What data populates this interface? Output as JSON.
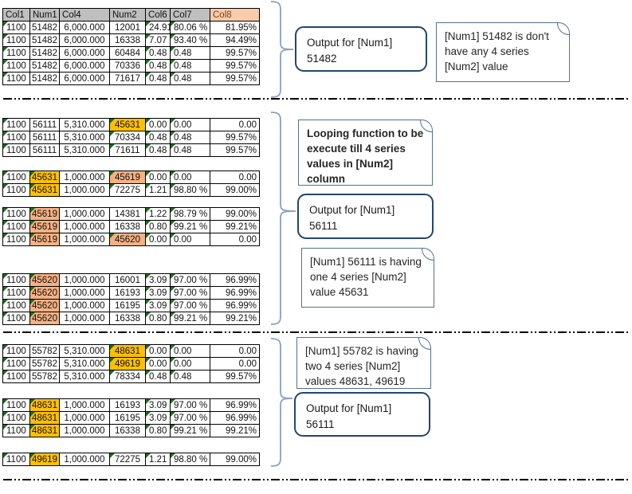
{
  "colors": {
    "gold": "#FFC000",
    "salmon": "#F4B183",
    "header_gray": "#BFBFBF",
    "header_peach": "#F8CBAD",
    "triangle_green": "#1E6C1E",
    "brace_blue": "#8BA0BD",
    "output_box_border": "#24466B",
    "note_box_border": "#54708E",
    "grid_black": "#000000"
  },
  "table": {
    "headers": [
      {
        "label": "Col1",
        "accent": false
      },
      {
        "label": "Num1",
        "accent": false
      },
      {
        "label": "Col4",
        "accent": false
      },
      {
        "label": "Num2",
        "accent": false
      },
      {
        "label": "Col6",
        "accent": false
      },
      {
        "label": "Col7",
        "accent": false
      },
      {
        "label": "Col8",
        "accent": true
      }
    ]
  },
  "blocks": [
    {
      "id": "main-51482",
      "header": true,
      "rows": [
        {
          "c": [
            "1100",
            "51482",
            "6,000.000",
            "12001",
            "24.91",
            "80.06 %",
            "81.95%"
          ],
          "tri": [
            0,
            4,
            5
          ],
          "hl": {}
        },
        {
          "c": [
            "1100",
            "51482",
            "6,000.000",
            "16338",
            "7.07",
            "93.40 %",
            "94.49%"
          ],
          "tri": [
            0,
            4,
            5
          ],
          "hl": {}
        },
        {
          "c": [
            "1100",
            "51482",
            "6,000.000",
            "60484",
            "0.48",
            "0.48",
            "99.57%"
          ],
          "tri": [
            0,
            4,
            5
          ],
          "hl": {}
        },
        {
          "c": [
            "1100",
            "51482",
            "6,000.000",
            "70336",
            "0.48",
            "0.48",
            "99.57%"
          ],
          "tri": [
            0,
            4,
            5
          ],
          "hl": {}
        },
        {
          "c": [
            "1100",
            "51482",
            "6,000.000",
            "71617",
            "0.48",
            "0.48",
            "99.57%"
          ],
          "tri": [
            0,
            4,
            5
          ],
          "hl": {}
        }
      ]
    },
    {
      "id": "56111",
      "header": false,
      "rows": [
        {
          "c": [
            "1100",
            "56111",
            "5,310.000",
            "45631",
            "0.00",
            "0.00",
            "0.00"
          ],
          "tri": [
            0,
            3,
            4,
            5
          ],
          "hl": {
            "3": "gold"
          }
        },
        {
          "c": [
            "1100",
            "56111",
            "5,310.000",
            "70334",
            "0.48",
            "0.48",
            "99.57%"
          ],
          "tri": [
            0,
            3,
            4,
            5
          ],
          "hl": {}
        },
        {
          "c": [
            "1100",
            "56111",
            "5,310.000",
            "71611",
            "0.48",
            "0.48",
            "99.57%"
          ],
          "tri": [
            0,
            3,
            4,
            5
          ],
          "hl": {}
        }
      ]
    },
    {
      "id": "45631",
      "header": false,
      "rows": [
        {
          "c": [
            "1100",
            "45631",
            "1,000.000",
            "45619",
            "0.00",
            "0.00",
            "0.00"
          ],
          "tri": [
            0,
            1,
            3,
            4,
            5
          ],
          "hl": {
            "1": "gold",
            "3": "salmon"
          }
        },
        {
          "c": [
            "1100",
            "45631",
            "1,000.000",
            "72275",
            "1.21",
            "98.80 %",
            "99.00%"
          ],
          "tri": [
            0,
            1,
            3,
            4,
            5
          ],
          "hl": {
            "1": "gold"
          }
        }
      ]
    },
    {
      "id": "45619",
      "header": false,
      "rows": [
        {
          "c": [
            "1100",
            "45619",
            "1,000.000",
            "14381",
            "1.22",
            "98.79 %",
            "99.00%"
          ],
          "tri": [
            0,
            1,
            4,
            5
          ],
          "hl": {
            "1": "salmon"
          }
        },
        {
          "c": [
            "1100",
            "45619",
            "1,000.000",
            "16338",
            "0.80",
            "99.21 %",
            "99.21%"
          ],
          "tri": [
            0,
            1,
            4,
            5
          ],
          "hl": {
            "1": "salmon"
          }
        },
        {
          "c": [
            "1100",
            "45619",
            "1,000.000",
            "45620",
            "0.00",
            "0.00",
            "0.00"
          ],
          "tri": [
            0,
            1,
            3,
            4,
            5
          ],
          "hl": {
            "1": "salmon",
            "3": "salmon"
          }
        }
      ]
    },
    {
      "id": "45620",
      "header": false,
      "rows": [
        {
          "c": [
            "1100",
            "45620",
            "1,000.000",
            "16001",
            "3.09",
            "97.00 %",
            "96.99%"
          ],
          "tri": [
            0,
            1,
            4,
            5
          ],
          "hl": {
            "1": "salmon"
          }
        },
        {
          "c": [
            "1100",
            "45620",
            "1,000.000",
            "16193",
            "3.09",
            "97.00 %",
            "96.99%"
          ],
          "tri": [
            0,
            1,
            4,
            5
          ],
          "hl": {
            "1": "salmon"
          }
        },
        {
          "c": [
            "1100",
            "45620",
            "1,000.000",
            "16195",
            "3.09",
            "97.00 %",
            "96.99%"
          ],
          "tri": [
            0,
            1,
            4,
            5
          ],
          "hl": {
            "1": "salmon"
          }
        },
        {
          "c": [
            "1100",
            "45620",
            "1,000.000",
            "16338",
            "0.80",
            "99.21 %",
            "99.21%"
          ],
          "tri": [
            0,
            1,
            4,
            5
          ],
          "hl": {
            "1": "salmon"
          }
        }
      ]
    },
    {
      "id": "55782",
      "header": false,
      "rows": [
        {
          "c": [
            "1100",
            "55782",
            "5,310.000",
            "48631",
            "0.00",
            "0.00",
            "0.00"
          ],
          "tri": [
            0,
            3,
            4,
            5
          ],
          "hl": {
            "3": "gold"
          }
        },
        {
          "c": [
            "1100",
            "55782",
            "5,310.000",
            "49619",
            "0.00",
            "0.00",
            "0.00"
          ],
          "tri": [
            0,
            3,
            4,
            5
          ],
          "hl": {
            "3": "gold"
          }
        },
        {
          "c": [
            "1100",
            "55782",
            "5,310.000",
            "78334",
            "0.48",
            "0.48",
            "99.57%"
          ],
          "tri": [
            0,
            3,
            4,
            5
          ],
          "hl": {}
        }
      ]
    },
    {
      "id": "48631",
      "header": false,
      "rows": [
        {
          "c": [
            "1100",
            "48631",
            "1,000.000",
            "16193",
            "3.09",
            "97.00 %",
            "96.99%"
          ],
          "tri": [
            0,
            1,
            4,
            5
          ],
          "hl": {
            "1": "gold"
          }
        },
        {
          "c": [
            "1100",
            "48631",
            "1,000.000",
            "16195",
            "3.09",
            "97.00 %",
            "96.99%"
          ],
          "tri": [
            0,
            1,
            4,
            5
          ],
          "hl": {
            "1": "gold"
          }
        },
        {
          "c": [
            "1100",
            "48631",
            "1,000.000",
            "16338",
            "0.80",
            "99.21 %",
            "99.21%"
          ],
          "tri": [
            0,
            1,
            4,
            5
          ],
          "hl": {
            "1": "gold"
          }
        }
      ]
    },
    {
      "id": "49619",
      "header": false,
      "rows": [
        {
          "c": [
            "1100",
            "49619",
            "1,000.000",
            "72275",
            "1.21",
            "98.80 %",
            "99.00%"
          ],
          "tri": [
            0,
            1,
            3,
            4,
            5
          ],
          "hl": {
            "1": "gold"
          }
        }
      ]
    }
  ],
  "callouts": {
    "output1": "Output for [Num1] 51482",
    "note1": "[Num1] 51482 is don't have any 4 series [Num2] value",
    "loop_note": "Looping function to be execute till 4 series values in [Num2] column",
    "output2": "Output for [Num1] 56111",
    "note2": "[Num1] 56111 is having one 4 series [Num2] value 45631",
    "note3": "[Num1] 55782 is having two 4 series [Num2] values 48631, 49619",
    "output3": "Output for [Num1] 56111"
  }
}
